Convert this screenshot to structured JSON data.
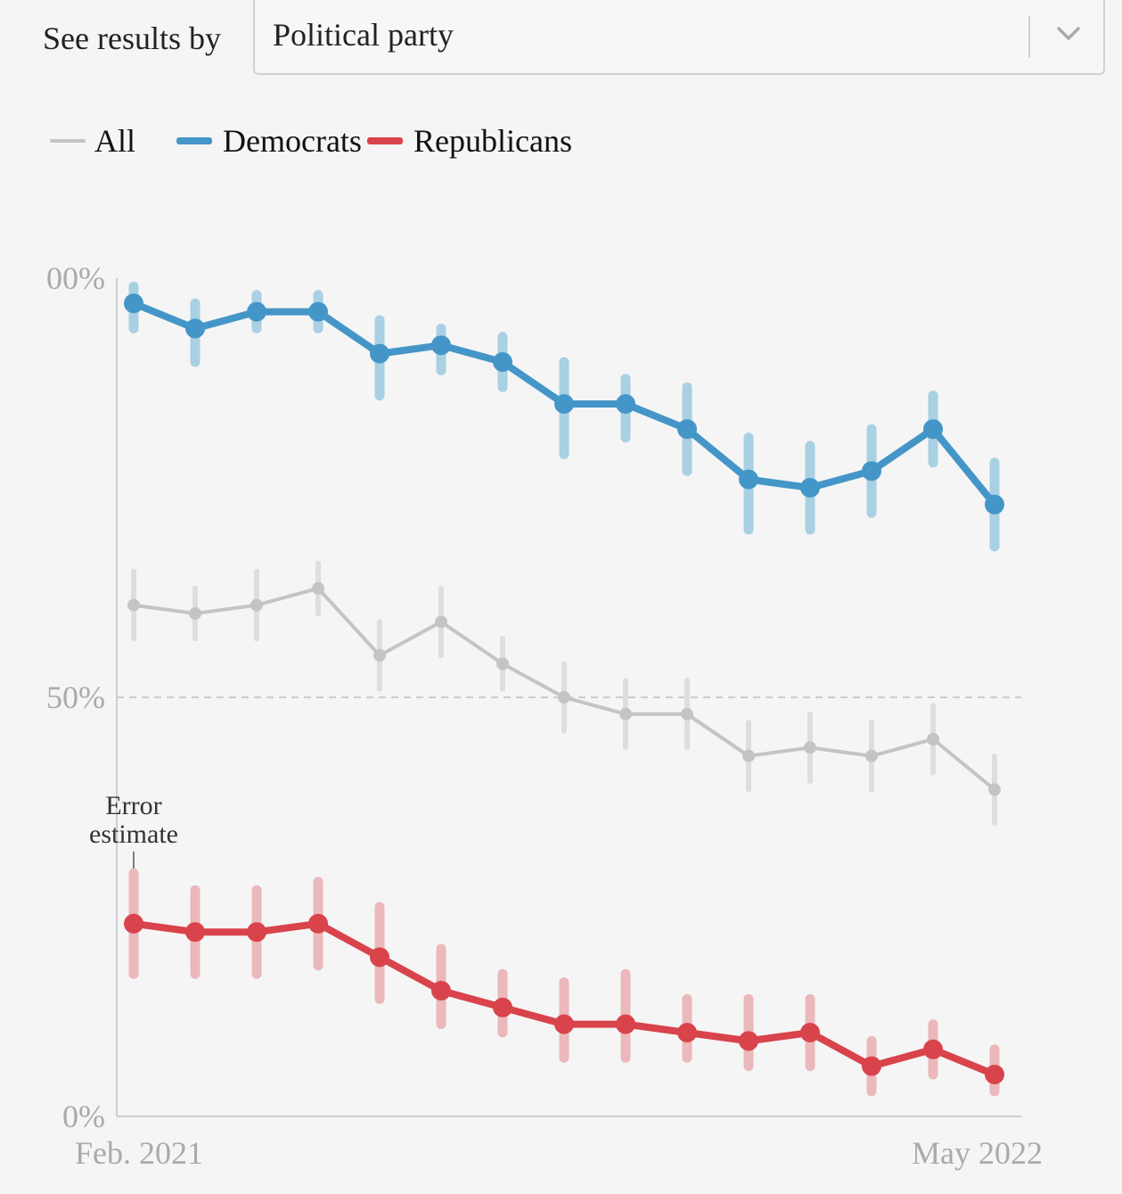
{
  "filter": {
    "label": "See results by",
    "selected": "Political party"
  },
  "legend": [
    {
      "label": "All",
      "color": "#c4c4c4"
    },
    {
      "label": "Democrats",
      "color": "#4596c8"
    },
    {
      "label": "Republicans",
      "color": "#d9434b"
    }
  ],
  "chart_data": {
    "type": "line",
    "x_start_label": "Feb. 2021",
    "x_end_label": "May 2022",
    "y_tick_labels": [
      "00%",
      "50%",
      "0%"
    ],
    "ylim": [
      0,
      100
    ],
    "reference_line": 50,
    "annotation": "Error estimate",
    "series": [
      {
        "name": "Democrats",
        "color": "#4596c8",
        "error_color": "#a9d0e3",
        "values": [
          97,
          94,
          96,
          96,
          91,
          92,
          90,
          85,
          85,
          82,
          76,
          75,
          77,
          82,
          73
        ],
        "lower": [
          94,
          90,
          94,
          94,
          86,
          89,
          87,
          79,
          81,
          77,
          70,
          70,
          72,
          78,
          68
        ],
        "upper": [
          99,
          97,
          98,
          98,
          95,
          94,
          93,
          90,
          88,
          87,
          81,
          80,
          82,
          86,
          78
        ]
      },
      {
        "name": "All",
        "color": "#c4c4c4",
        "error_color": "#dedede",
        "values": [
          61,
          60,
          61,
          63,
          55,
          59,
          54,
          50,
          48,
          48,
          43,
          44,
          43,
          45,
          39
        ],
        "lower": [
          57,
          57,
          57,
          60,
          51,
          55,
          51,
          46,
          44,
          44,
          39,
          40,
          39,
          41,
          35
        ],
        "upper": [
          65,
          63,
          65,
          66,
          59,
          63,
          57,
          54,
          52,
          52,
          47,
          48,
          47,
          49,
          43
        ]
      },
      {
        "name": "Republicans",
        "color": "#d9434b",
        "error_color": "#ebb8bb",
        "values": [
          23,
          22,
          22,
          23,
          19,
          15,
          13,
          11,
          11,
          10,
          9,
          10,
          6,
          8,
          5
        ],
        "lower": [
          17,
          17,
          17,
          18,
          14,
          11,
          10,
          7,
          7,
          7,
          6,
          6,
          3,
          5,
          3
        ],
        "upper": [
          29,
          27,
          27,
          28,
          25,
          20,
          17,
          16,
          17,
          14,
          14,
          14,
          9,
          11,
          8
        ]
      }
    ]
  }
}
